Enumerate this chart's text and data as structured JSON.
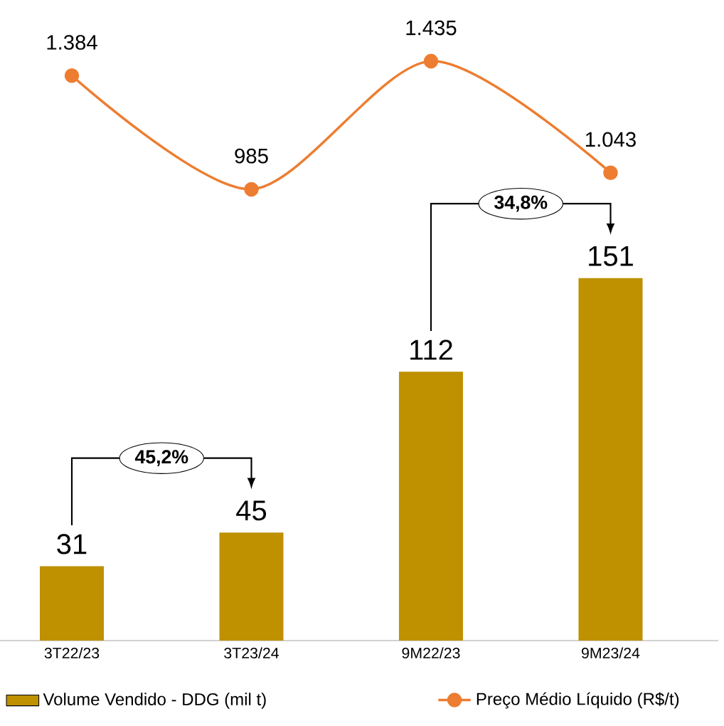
{
  "chart_data": [
    {
      "type": "line",
      "categories": [
        null,
        null,
        null,
        null
      ],
      "series": [
        {
          "name": "Preço Médio Líquido (R$/t)",
          "color": "#ed7d31",
          "values": [
            1384,
            985,
            1435,
            1043
          ],
          "value_labels": [
            "1.384",
            "985",
            "1.435",
            "1.043"
          ]
        }
      ],
      "marker": "circle",
      "legend": "bottom",
      "tick_labels": false
    },
    {
      "type": "bar",
      "categories": [
        "3T22/23",
        "3T23/24",
        "9M22/23",
        "9M23/24"
      ],
      "series": [
        {
          "name": "Volume Vendido - DDG (mil t)",
          "color": "#bf9000",
          "values": [
            31,
            45,
            112,
            151
          ]
        }
      ],
      "data_labels": true,
      "legend": "bottom",
      "tick_labels": "x",
      "annotations": [
        "45,2%",
        "34,8%"
      ]
    }
  ]
}
